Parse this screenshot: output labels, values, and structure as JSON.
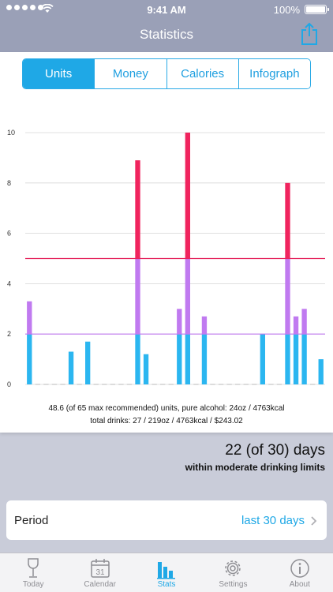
{
  "status_bar": {
    "time": "9:41 AM",
    "battery": "100%"
  },
  "nav": {
    "title": "Statistics",
    "share_icon": "share-icon"
  },
  "segments": [
    {
      "label": "Units",
      "active": true
    },
    {
      "label": "Money",
      "active": false
    },
    {
      "label": "Calories",
      "active": false
    },
    {
      "label": "Infograph",
      "active": false
    }
  ],
  "chart_data": {
    "type": "bar",
    "ylim": [
      0,
      10
    ],
    "y_ticks": [
      "0",
      "2",
      "4",
      "6",
      "8",
      "10"
    ],
    "grid": true,
    "values": [
      3.3,
      0,
      0,
      0,
      0,
      1.3,
      0,
      1.7,
      0,
      0,
      0,
      0,
      0,
      8.9,
      1.2,
      0,
      0,
      0,
      3.0,
      10.0,
      0,
      2.7,
      0,
      0,
      0,
      0,
      0,
      0,
      2.0,
      0,
      0,
      8.0,
      2.7,
      3.0,
      0,
      1.0
    ],
    "moderate_limit": 2,
    "high_limit": 5,
    "colors": {
      "low": "#2bb6f0",
      "moderate": "#c07af0",
      "high": "#f0245e",
      "moderate_line": "#c07af0",
      "high_line": "#e5245e"
    }
  },
  "summary": {
    "line1": "48.6 (of 65 max recommended) units, pure alcohol: 24oz / 4763kcal",
    "line2": "total drinks: 27 / 219oz / 4763kcal / $243.02"
  },
  "days": {
    "headline": "22 (of 30) days",
    "subline": "within moderate drinking limits"
  },
  "period": {
    "label": "Period",
    "value": "last 30 days"
  },
  "tabs": [
    {
      "label": "Today",
      "icon": "glass-icon",
      "active": false
    },
    {
      "label": "Calendar",
      "icon": "calendar-icon",
      "badge": "31",
      "active": false
    },
    {
      "label": "Stats",
      "icon": "bar-chart-icon",
      "active": true
    },
    {
      "label": "Settings",
      "icon": "gear-icon",
      "active": false
    },
    {
      "label": "About",
      "icon": "info-icon",
      "active": false
    }
  ]
}
